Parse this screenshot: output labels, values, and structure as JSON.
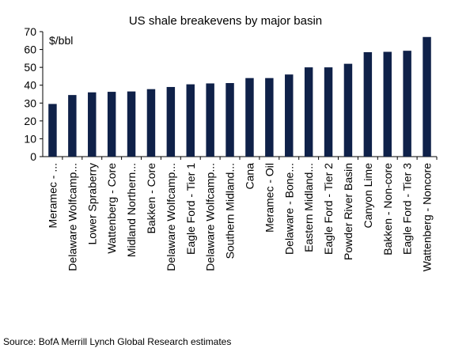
{
  "chart_data": {
    "type": "bar",
    "title": "US shale breakevens by major basin",
    "unit_label": "$/bbl",
    "xlabel": "",
    "ylabel": "",
    "ylim": [
      0,
      70
    ],
    "yticks": [
      0,
      10,
      20,
      30,
      40,
      50,
      60,
      70
    ],
    "grid": false,
    "bar_color": "#0f2149",
    "categories": [
      "Meramec - ...",
      "Delaware Wolfcamp...",
      "Lower Spraberry",
      "Wattenberg - Core",
      "Midland Northern...",
      "Bakken - Core",
      "Delaware Wolfcamp...",
      "Eagle Ford - Tier 1",
      "Delaware Wolfcamp...",
      "Southern Midland...",
      "Cana",
      "Meramec - Oil",
      "Delaware - Bone...",
      "Eastern Midland...",
      "Eagle Ford - Tier 2",
      "Powder River Basin",
      "Canyon Lime",
      "Bakken - Non-core",
      "Eagle Ford - Tier 3",
      "Wattenberg - Noncore"
    ],
    "values": [
      29.5,
      34.5,
      36,
      36.3,
      36.5,
      37.8,
      39,
      40.5,
      41,
      41.2,
      44,
      44,
      46,
      50,
      50,
      52,
      58.5,
      58.7,
      59.3,
      67
    ]
  },
  "source": "Source: BofA Merrill Lynch Global Research estimates"
}
